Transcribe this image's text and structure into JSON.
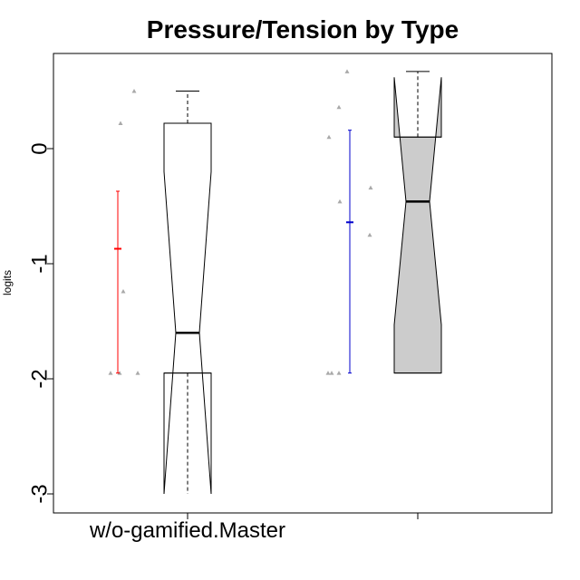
{
  "chart_data": {
    "type": "boxplot",
    "title": "Pressure/Tension by Type",
    "ylabel": "logits",
    "xlabel": "",
    "ylim": [
      -3.15,
      0.83
    ],
    "yticks": [
      0,
      -1,
      -2,
      -3
    ],
    "ytick_labels": [
      "0",
      "-1",
      "-2",
      "-3"
    ],
    "x_tick_labels": [
      "w/o-gamified.Master",
      ""
    ],
    "groups": [
      {
        "box": {
          "whisker_low": -3.0,
          "q1": -1.95,
          "median": -1.6,
          "q3": 0.22,
          "whisker_high": 0.5,
          "notch_low": -3.0,
          "notch_high": -0.2,
          "fill": "#ffffff"
        },
        "points": [
          0.5,
          0.22,
          -1.24,
          -1.95,
          -1.95,
          -1.95
        ],
        "mean_bar": {
          "mean": -0.87,
          "low": -1.95,
          "high": -0.37,
          "color": "#ff0000"
        }
      },
      {
        "box": {
          "whisker_low": -1.95,
          "q1": -1.95,
          "median": -0.46,
          "q3": 0.1,
          "whisker_high": 0.67,
          "notch_low": -1.53,
          "notch_high": 0.62,
          "fill": "#cccccc"
        },
        "points": [
          0.67,
          0.36,
          0.1,
          -0.34,
          -0.46,
          -0.75,
          -1.95,
          -1.95,
          -1.95
        ],
        "mean_bar": {
          "mean": -0.64,
          "low": -1.95,
          "high": 0.16,
          "color": "#0000cc"
        }
      }
    ],
    "point_color": "#a9a9a9",
    "grid": false,
    "legend": "none"
  }
}
